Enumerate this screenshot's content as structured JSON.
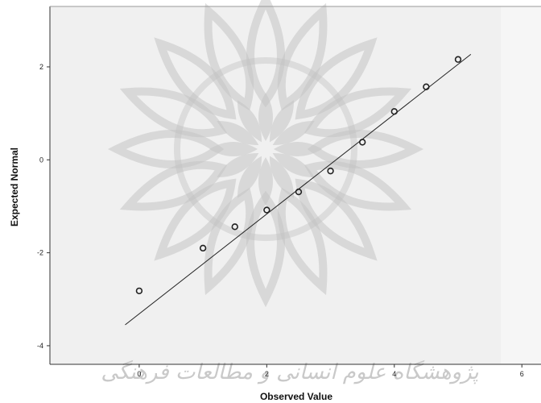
{
  "colors": {
    "plot_background": "#f0f0f0",
    "outer_background": "#ffffff",
    "axis": "#333333",
    "marker_stroke": "#222222",
    "reference_line": "#222222",
    "watermark": "#c4c4c4"
  },
  "watermark": {
    "description_icon": "rosette-watermark-icon",
    "text": "پژوهشگاه علوم انسانی و مطالعات فرهنگی"
  },
  "chart_data": {
    "type": "scatter",
    "xlabel": "Observed Value",
    "ylabel": "Expected Normal",
    "xlim": [
      -1.4,
      6.3
    ],
    "ylim": [
      -4.4,
      3.3
    ],
    "x_ticks": [
      0,
      2,
      4,
      6
    ],
    "y_ticks": [
      2,
      0,
      -2,
      -4
    ],
    "grid": false,
    "points": [
      {
        "x": 0.0,
        "y": -2.82
      },
      {
        "x": 1.0,
        "y": -1.9
      },
      {
        "x": 1.5,
        "y": -1.44
      },
      {
        "x": 2.0,
        "y": -1.08
      },
      {
        "x": 2.5,
        "y": -0.69
      },
      {
        "x": 3.0,
        "y": -0.24
      },
      {
        "x": 3.5,
        "y": 0.38
      },
      {
        "x": 4.0,
        "y": 1.04
      },
      {
        "x": 4.5,
        "y": 1.57
      },
      {
        "x": 5.0,
        "y": 2.16
      }
    ],
    "reference_line": {
      "x": [
        -0.22,
        5.2
      ],
      "y": [
        -3.55,
        2.27
      ]
    }
  }
}
